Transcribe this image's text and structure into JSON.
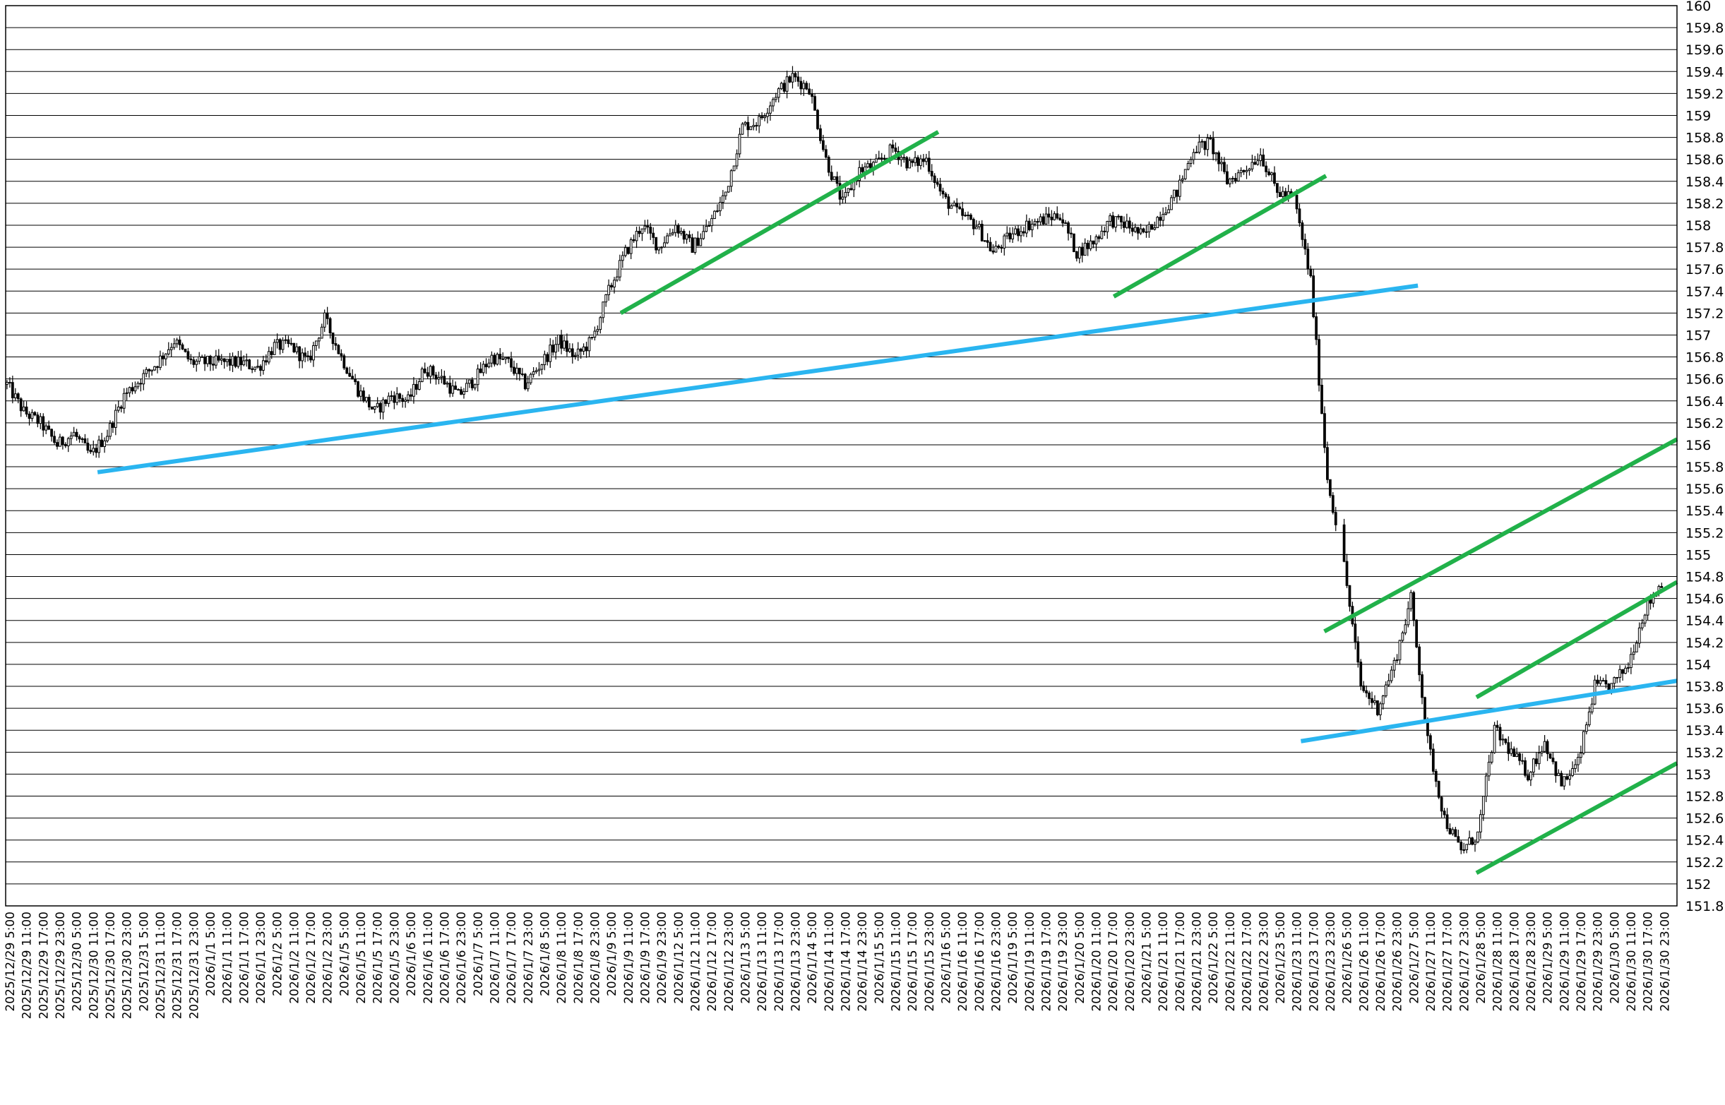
{
  "chart_data": {
    "type": "candlestick",
    "title": "",
    "xlabel": "",
    "ylabel": "",
    "ylim": [
      151.8,
      160
    ],
    "ytick_step": 0.2,
    "y_ticks": [
      "160",
      "159.8",
      "159.6",
      "159.4",
      "159.2",
      "159",
      "158.8",
      "158.6",
      "158.4",
      "158.2",
      "158",
      "157.8",
      "157.6",
      "157.4",
      "157.2",
      "157",
      "156.8",
      "156.6",
      "156.4",
      "156.2",
      "156",
      "155.8",
      "155.6",
      "155.4",
      "155.2",
      "155",
      "154.8",
      "154.6",
      "154.4",
      "154.2",
      "154",
      "153.8",
      "153.6",
      "153.4",
      "153.2",
      "153",
      "152.8",
      "152.6",
      "152.4",
      "152.2",
      "152",
      "151.8"
    ],
    "grid": true,
    "x_ticks": [
      "2025/12/29 5:00",
      "2025/12/29 11:00",
      "2025/12/29 17:00",
      "2025/12/29 23:00",
      "2025/12/30 5:00",
      "2025/12/30 11:00",
      "2025/12/30 17:00",
      "2025/12/30 23:00",
      "2025/12/31 5:00",
      "2025/12/31 11:00",
      "2025/12/31 17:00",
      "2025/12/31 23:00",
      "2026/1/1 5:00",
      "2026/1/1 11:00",
      "2026/1/1 17:00",
      "2026/1/1 23:00",
      "2026/1/2 5:00",
      "2026/1/2 11:00",
      "2026/1/2 17:00",
      "2026/1/2 23:00",
      "2026/1/5 5:00",
      "2026/1/5 11:00",
      "2026/1/5 17:00",
      "2026/1/5 23:00",
      "2026/1/6 5:00",
      "2026/1/6 11:00",
      "2026/1/6 17:00",
      "2026/1/6 23:00",
      "2026/1/7 5:00",
      "2026/1/7 11:00",
      "2026/1/7 17:00",
      "2026/1/7 23:00",
      "2026/1/8 5:00",
      "2026/1/8 11:00",
      "2026/1/8 17:00",
      "2026/1/8 23:00",
      "2026/1/9 5:00",
      "2026/1/9 11:00",
      "2026/1/9 17:00",
      "2026/1/9 23:00",
      "2026/1/12 5:00",
      "2026/1/12 11:00",
      "2026/1/12 17:00",
      "2026/1/12 23:00",
      "2026/1/13 5:00",
      "2026/1/13 11:00",
      "2026/1/13 17:00",
      "2026/1/13 23:00",
      "2026/1/14 5:00",
      "2026/1/14 11:00",
      "2026/1/14 17:00",
      "2026/1/14 23:00",
      "2026/1/15 5:00",
      "2026/1/15 11:00",
      "2026/1/15 17:00",
      "2026/1/15 23:00",
      "2026/1/16 5:00",
      "2026/1/16 11:00",
      "2026/1/16 17:00",
      "2026/1/16 23:00",
      "2026/1/19 5:00",
      "2026/1/19 11:00",
      "2026/1/19 17:00",
      "2026/1/19 23:00",
      "2026/1/20 5:00",
      "2026/1/20 11:00",
      "2026/1/20 17:00",
      "2026/1/20 23:00",
      "2026/1/21 5:00",
      "2026/1/21 11:00",
      "2026/1/21 17:00",
      "2026/1/21 23:00",
      "2026/1/22 5:00",
      "2026/1/22 11:00",
      "2026/1/22 17:00",
      "2026/1/22 23:00",
      "2026/1/23 5:00",
      "2026/1/23 11:00",
      "2026/1/23 17:00",
      "2026/1/23 23:00",
      "2026/1/26 5:00",
      "2026/1/26 11:00",
      "2026/1/26 17:00",
      "2026/1/26 23:00",
      "2026/1/27 5:00",
      "2026/1/27 11:00",
      "2026/1/27 17:00",
      "2026/1/27 23:00",
      "2026/1/28 5:00",
      "2026/1/28 11:00",
      "2026/1/28 17:00",
      "2026/1/28 23:00",
      "2026/1/29 5:00",
      "2026/1/29 11:00",
      "2026/1/29 17:00",
      "2026/1/29 23:00",
      "2026/1/30 5:00",
      "2026/1/30 11:00",
      "2026/1/30 17:00",
      "2026/1/30 23:00"
    ],
    "price_path": [
      [
        0,
        156.55
      ],
      [
        1,
        156.3
      ],
      [
        2,
        156.2
      ],
      [
        3,
        156.0
      ],
      [
        4,
        156.1
      ],
      [
        5,
        155.9
      ],
      [
        6,
        156.1
      ],
      [
        7,
        156.45
      ],
      [
        8,
        156.6
      ],
      [
        9,
        156.75
      ],
      [
        10,
        156.95
      ],
      [
        11,
        156.75
      ],
      [
        12,
        156.75
      ],
      [
        13,
        156.75
      ],
      [
        14,
        156.75
      ],
      [
        15,
        156.7
      ],
      [
        16,
        156.9
      ],
      [
        17,
        156.9
      ],
      [
        18,
        156.75
      ],
      [
        19,
        157.15
      ],
      [
        20,
        156.8
      ],
      [
        21,
        156.5
      ],
      [
        22,
        156.3
      ],
      [
        23,
        156.45
      ],
      [
        24,
        156.4
      ],
      [
        25,
        156.7
      ],
      [
        26,
        156.6
      ],
      [
        27,
        156.45
      ],
      [
        28,
        156.6
      ],
      [
        29,
        156.8
      ],
      [
        30,
        156.75
      ],
      [
        31,
        156.55
      ],
      [
        32,
        156.75
      ],
      [
        33,
        156.95
      ],
      [
        34,
        156.8
      ],
      [
        35,
        156.95
      ],
      [
        36,
        157.4
      ],
      [
        37,
        157.75
      ],
      [
        38,
        158.0
      ],
      [
        39,
        157.8
      ],
      [
        40,
        158.0
      ],
      [
        41,
        157.8
      ],
      [
        42,
        158.0
      ],
      [
        43,
        158.3
      ],
      [
        44,
        158.9
      ],
      [
        45,
        158.95
      ],
      [
        46,
        159.2
      ],
      [
        47,
        159.35
      ],
      [
        48,
        159.25
      ],
      [
        49,
        158.6
      ],
      [
        50,
        158.2
      ],
      [
        51,
        158.5
      ],
      [
        52,
        158.55
      ],
      [
        53,
        158.7
      ],
      [
        54,
        158.55
      ],
      [
        55,
        158.6
      ],
      [
        56,
        158.25
      ],
      [
        57,
        158.1
      ],
      [
        58,
        158.0
      ],
      [
        59,
        157.75
      ],
      [
        60,
        157.9
      ],
      [
        61,
        158.0
      ],
      [
        62,
        158.05
      ],
      [
        63,
        158.1
      ],
      [
        64,
        157.75
      ],
      [
        65,
        157.85
      ],
      [
        66,
        158.05
      ],
      [
        67,
        158.0
      ],
      [
        68,
        157.9
      ],
      [
        69,
        158.1
      ],
      [
        70,
        158.3
      ],
      [
        71,
        158.7
      ],
      [
        72,
        158.75
      ],
      [
        73,
        158.4
      ],
      [
        74,
        158.5
      ],
      [
        75,
        158.65
      ],
      [
        76,
        158.3
      ],
      [
        77,
        158.25
      ],
      [
        78,
        157.5
      ],
      [
        79,
        155.7
      ],
      [
        80,
        154.9
      ],
      [
        81,
        153.8
      ],
      [
        82,
        153.6
      ],
      [
        83,
        154.0
      ],
      [
        84,
        154.6
      ],
      [
        85,
        153.3
      ],
      [
        86,
        152.6
      ],
      [
        87,
        152.3
      ],
      [
        88,
        152.45
      ],
      [
        89,
        153.4
      ],
      [
        90,
        153.2
      ],
      [
        91,
        153.0
      ],
      [
        92,
        153.3
      ],
      [
        93,
        152.9
      ],
      [
        94,
        153.1
      ],
      [
        95,
        153.8
      ],
      [
        96,
        153.8
      ],
      [
        97,
        154.0
      ],
      [
        98,
        154.5
      ],
      [
        99,
        154.75
      ]
    ],
    "trendlines": [
      {
        "color": "#2ab5f0",
        "from": [
          5.5,
          155.75
        ],
        "to": [
          84.5,
          157.45
        ]
      },
      {
        "color": "#2ab5f0",
        "from": [
          77.5,
          153.3
        ],
        "to": [
          100,
          153.85
        ]
      },
      {
        "color": "#21b14a",
        "from": [
          36.8,
          157.2
        ],
        "to": [
          55.8,
          158.85
        ]
      },
      {
        "color": "#21b14a",
        "from": [
          66.3,
          157.35
        ],
        "to": [
          79.0,
          158.45
        ]
      },
      {
        "color": "#21b14a",
        "from": [
          78.9,
          154.3
        ],
        "to": [
          100,
          156.05
        ]
      },
      {
        "color": "#21b14a",
        "from": [
          88.0,
          153.7
        ],
        "to": [
          100,
          154.75
        ]
      },
      {
        "color": "#21b14a",
        "from": [
          88.0,
          152.1
        ],
        "to": [
          100,
          153.1
        ]
      }
    ]
  }
}
